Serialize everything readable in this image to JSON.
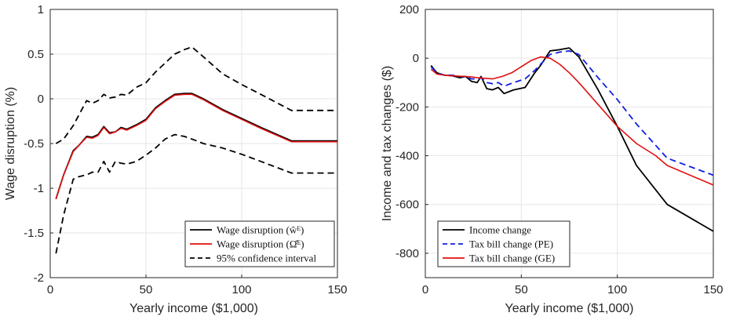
{
  "chart_data": [
    {
      "type": "line",
      "title": "",
      "xlabel": "Yearly income ($1,000)",
      "ylabel": "Wage disruption (%)",
      "xlim": [
        0,
        150
      ],
      "ylim": [
        -2,
        1
      ],
      "xticks": [
        "0",
        "50",
        "100",
        "150"
      ],
      "yticks": [
        "1",
        "0.5",
        "0",
        "-0.5",
        "-1",
        "-1.5",
        "-2"
      ],
      "grid": true,
      "legend": "bottom-right",
      "series": [
        {
          "name": "95% confidence interval",
          "color": "#000000",
          "style": "dashed",
          "x": [
            3,
            7,
            12,
            15,
            19,
            22,
            25,
            28,
            31,
            34,
            37,
            40,
            45,
            50,
            55,
            60,
            65,
            70,
            74,
            80,
            90,
            100,
            110,
            126,
            150
          ],
          "y": [
            -0.5,
            -0.45,
            -0.3,
            -0.18,
            -0.02,
            -0.05,
            -0.02,
            0.05,
            0.01,
            0.02,
            0.05,
            0.04,
            0.13,
            0.18,
            0.3,
            0.4,
            0.5,
            0.55,
            0.58,
            0.47,
            0.28,
            0.16,
            0.05,
            -0.13,
            -0.13
          ]
        },
        {
          "name": "95% confidence interval",
          "color": "#000000",
          "style": "dashed",
          "x": [
            3,
            7,
            12,
            15,
            19,
            22,
            25,
            28,
            31,
            34,
            37,
            40,
            45,
            50,
            55,
            60,
            65,
            70,
            74,
            80,
            90,
            100,
            110,
            126,
            150
          ],
          "y": [
            -1.73,
            -1.3,
            -0.9,
            -0.87,
            -0.85,
            -0.82,
            -0.82,
            -0.7,
            -0.82,
            -0.7,
            -0.72,
            -0.73,
            -0.7,
            -0.63,
            -0.55,
            -0.45,
            -0.4,
            -0.42,
            -0.45,
            -0.5,
            -0.55,
            -0.62,
            -0.7,
            -0.83,
            -0.83
          ]
        },
        {
          "name": "Wage disruption (ŵᴱ)",
          "color": "#000000",
          "style": "solid",
          "x": [
            3,
            7,
            12,
            15,
            19,
            22,
            25,
            28,
            31,
            34,
            37,
            40,
            45,
            50,
            55,
            60,
            65,
            70,
            74,
            80,
            90,
            100,
            110,
            126,
            150
          ],
          "y": [
            -1.12,
            -0.85,
            -0.58,
            -0.52,
            -0.42,
            -0.43,
            -0.4,
            -0.31,
            -0.38,
            -0.37,
            -0.32,
            -0.34,
            -0.29,
            -0.23,
            -0.1,
            -0.02,
            0.05,
            0.06,
            0.06,
            0.0,
            -0.12,
            -0.22,
            -0.32,
            -0.47,
            -0.47
          ]
        },
        {
          "name": "Wage disruption (Ω̂ᴱ)",
          "color": "#e01010",
          "style": "solid",
          "x": [
            3,
            7,
            12,
            15,
            19,
            22,
            25,
            28,
            31,
            34,
            37,
            40,
            45,
            50,
            55,
            60,
            65,
            70,
            74,
            80,
            90,
            100,
            110,
            126,
            150
          ],
          "y": [
            -1.12,
            -0.85,
            -0.59,
            -0.52,
            -0.43,
            -0.44,
            -0.41,
            -0.32,
            -0.39,
            -0.37,
            -0.33,
            -0.35,
            -0.3,
            -0.24,
            -0.11,
            -0.03,
            0.04,
            0.05,
            0.05,
            -0.01,
            -0.13,
            -0.23,
            -0.33,
            -0.48,
            -0.48
          ]
        }
      ],
      "legend_entries": [
        {
          "label": "Wage disruption (ŵᴱ)",
          "color": "#000000",
          "style": "solid"
        },
        {
          "label": "Wage disruption (Ω̂ᴱ)",
          "color": "#e01010",
          "style": "solid"
        },
        {
          "label": "95% confidence interval",
          "color": "#000000",
          "style": "dashed"
        }
      ]
    },
    {
      "type": "line",
      "title": "",
      "xlabel": "Yearly income ($1,000)",
      "ylabel": "Income and tax changes ($)",
      "xlim": [
        0,
        150
      ],
      "ylim": [
        -900,
        200
      ],
      "xticks": [
        "0",
        "50",
        "100",
        "150"
      ],
      "yticks": [
        "200",
        "0",
        "-200",
        "-400",
        "-600",
        "-800"
      ],
      "grid": true,
      "legend": "bottom-left",
      "series": [
        {
          "name": "Income change",
          "color": "#000000",
          "style": "solid",
          "x": [
            3,
            6,
            10,
            14,
            18,
            21,
            24,
            27,
            29,
            32,
            35,
            38,
            41,
            46,
            52,
            57,
            60,
            65,
            70,
            75,
            80,
            90,
            100,
            110,
            126,
            150
          ],
          "y": [
            -30,
            -60,
            -70,
            -72,
            -80,
            -75,
            -95,
            -100,
            -75,
            -125,
            -130,
            -120,
            -145,
            -130,
            -120,
            -60,
            -30,
            30,
            35,
            42,
            5,
            -130,
            -280,
            -440,
            -600,
            -710
          ]
        },
        {
          "name": "Tax bill change (PE)",
          "color": "#1020e0",
          "style": "dashed",
          "x": [
            3,
            6,
            10,
            14,
            18,
            21,
            24,
            27,
            29,
            32,
            35,
            38,
            41,
            46,
            52,
            57,
            60,
            65,
            70,
            75,
            80,
            90,
            100,
            110,
            126,
            150
          ],
          "y": [
            -35,
            -60,
            -70,
            -70,
            -75,
            -75,
            -85,
            -85,
            -80,
            -100,
            -105,
            -100,
            -115,
            -100,
            -85,
            -50,
            -25,
            15,
            25,
            30,
            15,
            -80,
            -170,
            -270,
            -410,
            -480
          ]
        },
        {
          "name": "Tax bill change (GE)",
          "color": "#e01010",
          "style": "solid",
          "x": [
            3,
            6,
            10,
            14,
            18,
            21,
            24,
            27,
            30,
            35,
            40,
            45,
            50,
            55,
            60,
            65,
            70,
            75,
            80,
            90,
            100,
            110,
            120,
            126,
            150
          ],
          "y": [
            -45,
            -65,
            -70,
            -72,
            -74,
            -75,
            -77,
            -80,
            -82,
            -85,
            -75,
            -60,
            -35,
            -10,
            5,
            0,
            -25,
            -60,
            -100,
            -190,
            -280,
            -350,
            -400,
            -440,
            -520
          ]
        }
      ],
      "legend_entries": [
        {
          "label": "Income change",
          "color": "#000000",
          "style": "solid"
        },
        {
          "label": "Tax bill change (PE)",
          "color": "#1020e0",
          "style": "dashed"
        },
        {
          "label": "Tax bill change (GE)",
          "color": "#e01010",
          "style": "solid"
        }
      ]
    }
  ]
}
